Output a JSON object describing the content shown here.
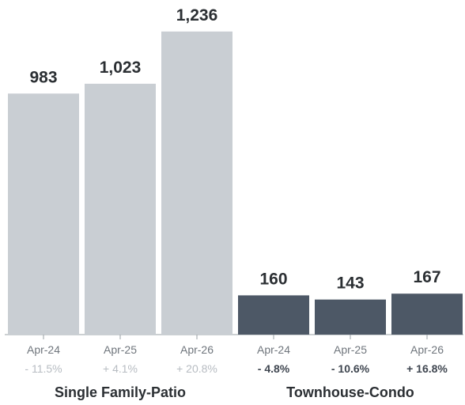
{
  "chart_data": {
    "type": "bar",
    "ylim": [
      0,
      1300
    ],
    "groups": [
      {
        "name": "Single Family-Patio",
        "color": "#c9ced3",
        "bars": [
          {
            "category": "Apr-24",
            "value": 983,
            "value_label": "983",
            "change": "- 11.5%"
          },
          {
            "category": "Apr-25",
            "value": 1023,
            "value_label": "1,023",
            "change": "+ 4.1%"
          },
          {
            "category": "Apr-26",
            "value": 1236,
            "value_label": "1,236",
            "change": "+ 20.8%"
          }
        ]
      },
      {
        "name": "Townhouse-Condo",
        "color": "#4d5866",
        "bars": [
          {
            "category": "Apr-24",
            "value": 160,
            "value_label": "160",
            "change": "- 4.8%"
          },
          {
            "category": "Apr-25",
            "value": 143,
            "value_label": "143",
            "change": "- 10.6%"
          },
          {
            "category": "Apr-26",
            "value": 167,
            "value_label": "167",
            "change": "+ 16.8%"
          }
        ]
      }
    ]
  }
}
